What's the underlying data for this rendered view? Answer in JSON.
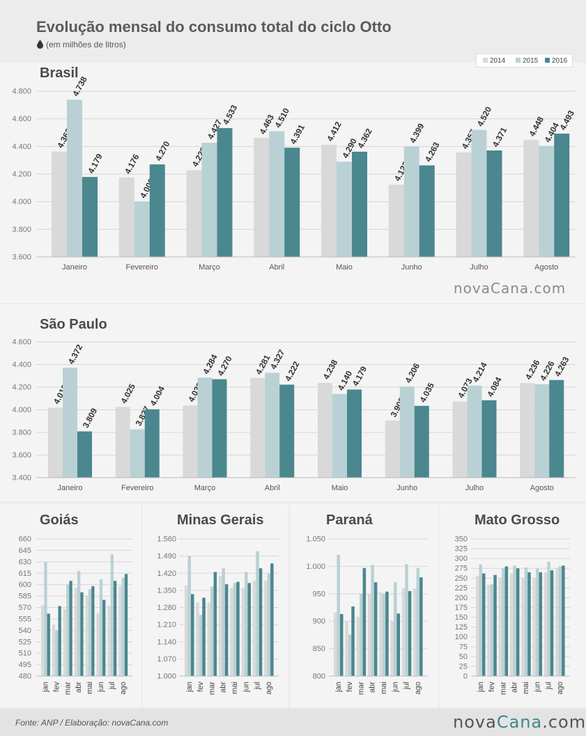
{
  "title": "Evolução mensal do consumo total do ciclo Otto",
  "subtitle": "(em milhões de litros)",
  "icons": {
    "unit": "drop-icon"
  },
  "colors": {
    "y2014": "#d9d9d9",
    "y2015": "#b9d1d5",
    "y2016": "#4a878e"
  },
  "legend": [
    "2014",
    "2015",
    "2016"
  ],
  "brand": {
    "part1": "nova",
    "part2": "Cana",
    "part3": ".com",
    "full": "novaCana.com"
  },
  "footer": {
    "source": "Fonte: ANP / Elaboração: novaCana.com"
  },
  "chart_data": [
    {
      "type": "bar",
      "title": "Brasil",
      "categories": [
        "Janeiro",
        "Fevereiro",
        "Março",
        "Abril",
        "Maio",
        "Junho",
        "Julho",
        "Agosto"
      ],
      "series": [
        {
          "name": "2014",
          "values": [
            4363,
            4176,
            4228,
            4463,
            4412,
            4123,
            4357,
            4448
          ]
        },
        {
          "name": "2015",
          "values": [
            4738,
            4000,
            4427,
            4510,
            4290,
            4399,
            4520,
            4404
          ]
        },
        {
          "name": "2016",
          "values": [
            4179,
            4270,
            4533,
            4391,
            4362,
            4263,
            4371,
            4493
          ]
        }
      ],
      "value_labels": [
        [
          "4.363",
          "4.176",
          "4.228",
          "4.463",
          "4.412",
          "4.123",
          "4.357",
          "4.448"
        ],
        [
          "4.738",
          "4.000",
          "4.427",
          "4.510",
          "4.290",
          "4.399",
          "4.520",
          "4.404"
        ],
        [
          "4.179",
          "4.270",
          "4.533",
          "4.391",
          "4.362",
          "4.263",
          "4.371",
          "4.493"
        ]
      ],
      "ylim": [
        3600,
        4800
      ],
      "yticks": [
        3600,
        3800,
        4000,
        4200,
        4400,
        4600,
        4800
      ],
      "ytick_labels": [
        "3.600",
        "3.800",
        "4.000",
        "4.200",
        "4.400",
        "4.600",
        "4.800"
      ],
      "grid": true
    },
    {
      "type": "bar",
      "title": "São Paulo",
      "categories": [
        "Janeiro",
        "Fevereiro",
        "Março",
        "Abril",
        "Maio",
        "Junho",
        "Julho",
        "Agosto"
      ],
      "series": [
        {
          "name": "2014",
          "values": [
            4019,
            4025,
            4038,
            4281,
            4238,
            3905,
            4073,
            4236
          ]
        },
        {
          "name": "2015",
          "values": [
            4372,
            3827,
            4284,
            4327,
            4140,
            4206,
            4214,
            4226
          ]
        },
        {
          "name": "2016",
          "values": [
            3809,
            4004,
            4270,
            4222,
            4179,
            4035,
            4084,
            4263
          ]
        }
      ],
      "value_labels": [
        [
          "4.019",
          "4.025",
          "4.038",
          "4.281",
          "4.238",
          "3.905",
          "4.073",
          "4.236"
        ],
        [
          "4.372",
          "3.827",
          "4.284",
          "4.327",
          "4.140",
          "4.206",
          "4.214",
          "4.226"
        ],
        [
          "3.809",
          "4.004",
          "4.270",
          "4.222",
          "4.179",
          "4.035",
          "4.084",
          "4.263"
        ]
      ],
      "ylim": [
        3400,
        4600
      ],
      "yticks": [
        3400,
        3600,
        3800,
        4000,
        4200,
        4400,
        4600
      ],
      "ytick_labels": [
        "3.400",
        "3.600",
        "3.800",
        "4.000",
        "4.200",
        "4.400",
        "4.600"
      ],
      "grid": true
    },
    {
      "type": "bar",
      "title": "Goiás",
      "categories": [
        "jan",
        "fev",
        "mar",
        "abr",
        "mai",
        "jun",
        "jul",
        "ago"
      ],
      "series": [
        {
          "name": "2014",
          "values": [
            573,
            548,
            568,
            596,
            586,
            562,
            572,
            598
          ]
        },
        {
          "name": "2015",
          "values": [
            630,
            540,
            600,
            618,
            594,
            607,
            640,
            609
          ]
        },
        {
          "name": "2016",
          "values": [
            562,
            572,
            605,
            590,
            598,
            580,
            605,
            614
          ]
        }
      ],
      "ylim": [
        480,
        660
      ],
      "yticks": [
        480,
        495,
        510,
        525,
        540,
        555,
        570,
        585,
        600,
        615,
        630,
        645,
        660
      ],
      "ytick_labels": [
        "480",
        "495",
        "510",
        "525",
        "540",
        "555",
        "570",
        "585",
        "600",
        "615",
        "630",
        "645",
        "660"
      ],
      "grid": true
    },
    {
      "type": "bar",
      "title": "Minas Gerais",
      "categories": [
        "jan",
        "fev",
        "mar",
        "abr",
        "mai",
        "jun",
        "jul",
        "ago"
      ],
      "series": [
        {
          "name": "2014",
          "values": [
            1370,
            1300,
            1300,
            1410,
            1360,
            1360,
            1390,
            1390
          ]
        },
        {
          "name": "2015",
          "values": [
            1490,
            1250,
            1365,
            1440,
            1380,
            1425,
            1510,
            1420
          ]
        },
        {
          "name": "2016",
          "values": [
            1335,
            1320,
            1425,
            1375,
            1385,
            1380,
            1440,
            1460
          ]
        }
      ],
      "ylim": [
        1000,
        1560
      ],
      "yticks": [
        1000,
        1070,
        1140,
        1210,
        1280,
        1350,
        1420,
        1490,
        1560
      ],
      "ytick_labels": [
        "1.000",
        "1.070",
        "1.140",
        "1.210",
        "1.280",
        "1.350",
        "1.420",
        "1.490",
        "1.560"
      ],
      "grid": true
    },
    {
      "type": "bar",
      "title": "Paraná",
      "categories": [
        "jan",
        "fev",
        "mar",
        "abr",
        "mai",
        "jun",
        "jul",
        "ago"
      ],
      "series": [
        {
          "name": "2014",
          "values": [
            916,
            900,
            908,
            950,
            953,
            900,
            960,
            960
          ]
        },
        {
          "name": "2015",
          "values": [
            1021,
            876,
            950,
            1003,
            950,
            971,
            1004,
            997
          ]
        },
        {
          "name": "2016",
          "values": [
            913,
            927,
            997,
            971,
            954,
            914,
            955,
            980
          ]
        }
      ],
      "ylim": [
        800,
        1050
      ],
      "yticks": [
        800,
        850,
        900,
        950,
        1000,
        1050
      ],
      "ytick_labels": [
        "800",
        "850",
        "900",
        "950",
        "1.000",
        "1.050"
      ],
      "grid": true
    },
    {
      "type": "bar",
      "title": "Mato Grosso",
      "categories": [
        "jan",
        "fev",
        "mar",
        "abr",
        "mai",
        "jun",
        "jul",
        "ago"
      ],
      "series": [
        {
          "name": "2014",
          "values": [
            255,
            233,
            250,
            262,
            250,
            250,
            265,
            275
          ]
        },
        {
          "name": "2015",
          "values": [
            285,
            235,
            275,
            282,
            277,
            275,
            292,
            280
          ]
        },
        {
          "name": "2016",
          "values": [
            262,
            258,
            280,
            275,
            265,
            265,
            270,
            282
          ]
        }
      ],
      "ylim": [
        0,
        350
      ],
      "yticks": [
        0,
        25,
        50,
        75,
        100,
        125,
        150,
        175,
        200,
        225,
        250,
        275,
        300,
        325,
        350
      ],
      "ytick_labels": [
        "0",
        "25",
        "50",
        "75",
        "100",
        "125",
        "150",
        "175",
        "200",
        "225",
        "250",
        "275",
        "300",
        "325",
        "350"
      ],
      "grid": true
    }
  ]
}
